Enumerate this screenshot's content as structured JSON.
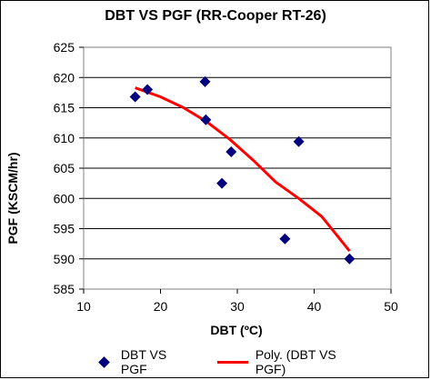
{
  "chart_data": {
    "type": "scatter",
    "title": "DBT VS PGF (RR-Cooper RT-26)",
    "xlabel": "DBT (ºC)",
    "ylabel": "PGF (KSCM/hr)",
    "xlim": [
      10,
      50
    ],
    "ylim": [
      585,
      625
    ],
    "xticks": [
      10,
      20,
      30,
      40,
      50
    ],
    "yticks": [
      585,
      590,
      595,
      600,
      605,
      610,
      615,
      620,
      625
    ],
    "grid": "horizontal",
    "legend_position": "bottom",
    "series": [
      {
        "name": "DBT VS PGF",
        "marker": "diamond",
        "color": "#00007f",
        "points": [
          {
            "x": 16.7,
            "y": 616.8
          },
          {
            "x": 18.3,
            "y": 618.0
          },
          {
            "x": 25.8,
            "y": 619.3
          },
          {
            "x": 25.9,
            "y": 613.0
          },
          {
            "x": 28.0,
            "y": 602.5
          },
          {
            "x": 29.2,
            "y": 607.7
          },
          {
            "x": 36.2,
            "y": 593.3
          },
          {
            "x": 38.0,
            "y": 609.4
          },
          {
            "x": 44.6,
            "y": 590.0
          }
        ]
      },
      {
        "name": "Poly. (DBT VS PGF)",
        "type": "line",
        "color": "#ff0000",
        "points": [
          {
            "x": 16.7,
            "y": 618.3
          },
          {
            "x": 20.0,
            "y": 616.8
          },
          {
            "x": 23.0,
            "y": 615.0
          },
          {
            "x": 26.0,
            "y": 612.7
          },
          {
            "x": 29.0,
            "y": 609.8
          },
          {
            "x": 32.0,
            "y": 606.4
          },
          {
            "x": 35.0,
            "y": 602.7
          },
          {
            "x": 38.0,
            "y": 600.0
          },
          {
            "x": 41.0,
            "y": 597.0
          },
          {
            "x": 44.6,
            "y": 591.3
          }
        ]
      }
    ]
  }
}
